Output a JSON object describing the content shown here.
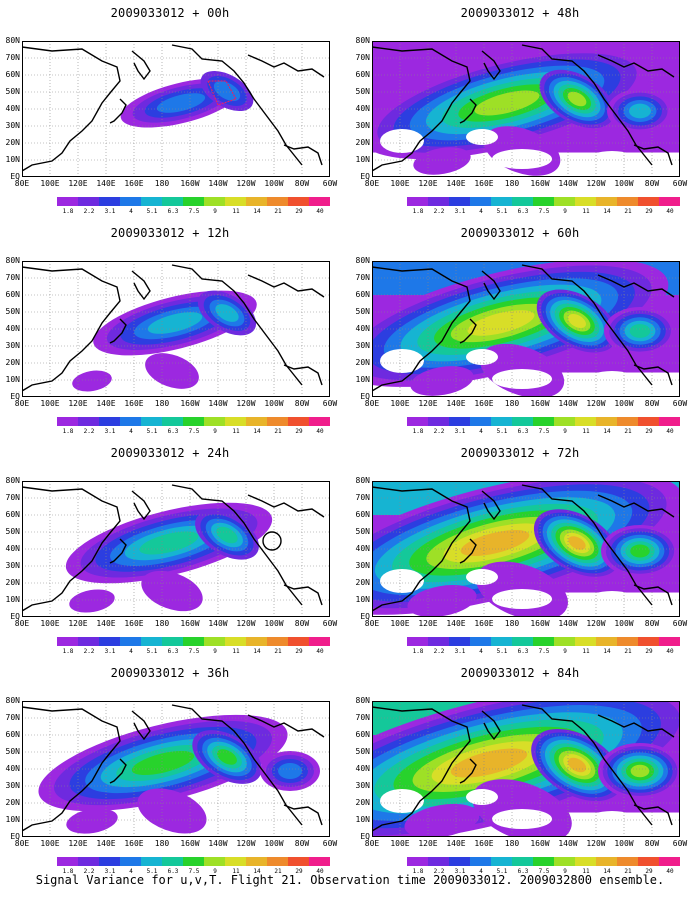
{
  "caption": "Signal Variance for u,v,T. Flight 21. Observation time 2009033012. 2009032800 ensemble.",
  "latitude_labels": [
    "80N",
    "70N",
    "60N",
    "50N",
    "40N",
    "30N",
    "20N",
    "10N",
    "EQ"
  ],
  "longitude_labels": [
    "80E",
    "100E",
    "120E",
    "140E",
    "160E",
    "180",
    "160W",
    "140W",
    "120W",
    "100W",
    "80W",
    "60W"
  ],
  "colorbar": {
    "labels": [
      "1.8",
      "2.2",
      "3.1",
      "4",
      "5.1",
      "6.3",
      "7.5",
      "9",
      "11",
      "14",
      "21",
      "29",
      "40"
    ],
    "colors": [
      "#9c28e0",
      "#6e2adf",
      "#2c3ee0",
      "#1e78e8",
      "#16b4d2",
      "#14c89a",
      "#28d22c",
      "#9ee026",
      "#d8de28",
      "#e8b42a",
      "#ee8a2c",
      "#f0502e",
      "#f01e8c"
    ]
  },
  "panels": [
    {
      "title": "2009033012 + 00h",
      "level": 1
    },
    {
      "title": "2009033012 + 48h",
      "level": 5
    },
    {
      "title": "2009033012 + 12h",
      "level": 2
    },
    {
      "title": "2009033012 + 60h",
      "level": 6
    },
    {
      "title": "2009033012 + 24h",
      "level": 3
    },
    {
      "title": "2009033012 + 72h",
      "level": 7
    },
    {
      "title": "2009033012 + 36h",
      "level": 4
    },
    {
      "title": "2009033012 + 84h",
      "level": 8
    }
  ]
}
